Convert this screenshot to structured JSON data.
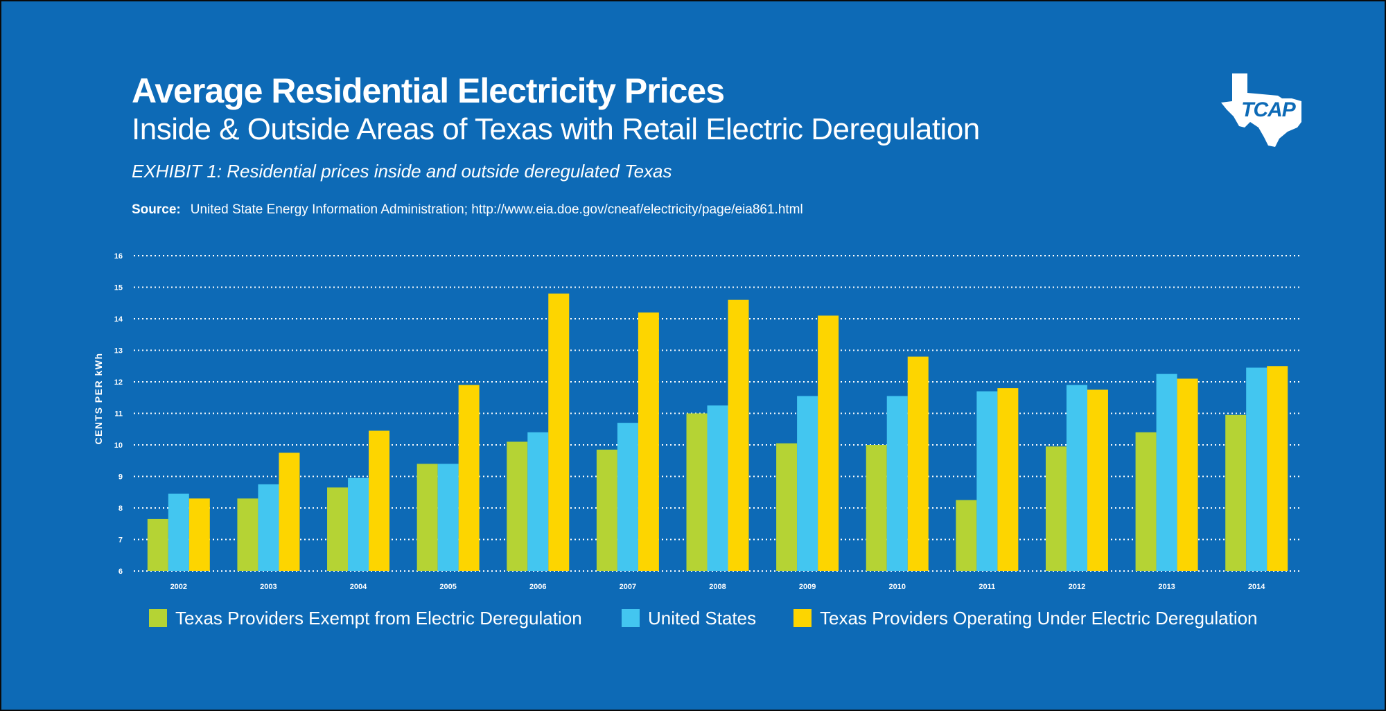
{
  "header": {
    "title": "Average Residential Electricity Prices",
    "subtitle": "Inside & Outside Areas of Texas with Retail Electric Deregulation",
    "exhibit": "EXHIBIT 1: Residential prices inside and outside deregulated Texas",
    "source_label": "Source:",
    "source_text": "United State Energy Information Administration; http://www.eia.doe.gov/cneaf/electricity/page/eia861.html"
  },
  "logo": {
    "icon": "texas-map-logo-icon",
    "text": "TCAP"
  },
  "colors": {
    "background": "#0d6ab6",
    "exempt": "#b5d334",
    "us": "#43c6f0",
    "dereg": "#fdd500",
    "grid": "#ffffff"
  },
  "chart_data": {
    "type": "bar",
    "title": "Average Residential Electricity Prices",
    "ylabel": "CENTS PER kWh",
    "xlabel": "",
    "ylim": [
      6,
      16
    ],
    "yticks": [
      6,
      7,
      8,
      9,
      10,
      11,
      12,
      13,
      14,
      15,
      16
    ],
    "grid": true,
    "legend_position": "bottom",
    "categories": [
      "2002",
      "2003",
      "2004",
      "2005",
      "2006",
      "2007",
      "2008",
      "2009",
      "2010",
      "2011",
      "2012",
      "2013",
      "2014"
    ],
    "series": [
      {
        "name": "Texas Providers Exempt from Electric Deregulation",
        "color": "#b5d334",
        "values": [
          7.65,
          8.3,
          8.65,
          9.4,
          10.1,
          9.85,
          11.0,
          10.05,
          10.0,
          8.25,
          9.95,
          10.4,
          10.95
        ]
      },
      {
        "name": "United States",
        "color": "#43c6f0",
        "values": [
          8.45,
          8.75,
          8.95,
          9.4,
          10.4,
          10.7,
          11.25,
          11.55,
          11.55,
          11.7,
          11.9,
          12.25,
          12.45
        ]
      },
      {
        "name": "Texas Providers Operating Under Electric Deregulation",
        "color": "#fdd500",
        "values": [
          8.3,
          9.75,
          10.45,
          11.9,
          14.8,
          14.2,
          14.6,
          14.1,
          12.8,
          11.8,
          11.75,
          12.1,
          12.5
        ]
      }
    ]
  }
}
